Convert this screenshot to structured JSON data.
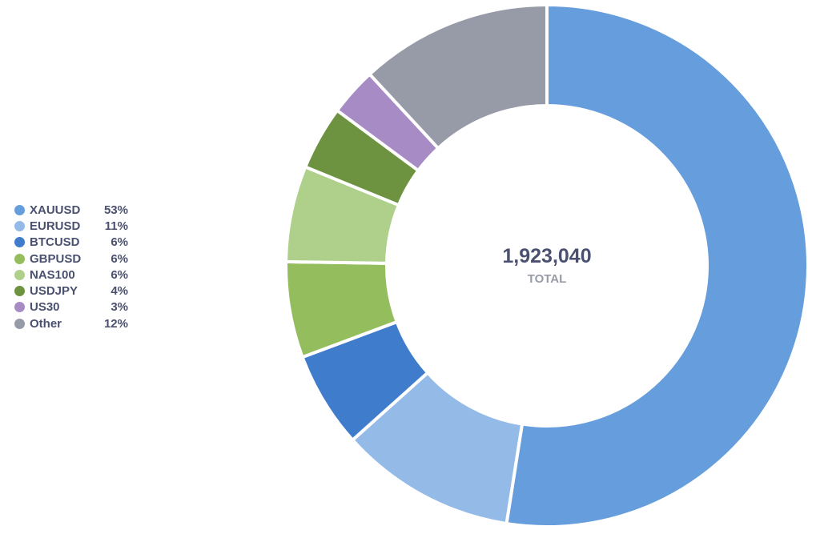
{
  "chart_data": {
    "type": "pie",
    "variant": "donut",
    "categories": [
      "XAUUSD",
      "EURUSD",
      "BTCUSD",
      "GBPUSD",
      "NAS100",
      "USDJPY",
      "US30",
      "Other"
    ],
    "values": [
      53,
      11,
      6,
      6,
      6,
      4,
      3,
      12
    ],
    "value_labels": [
      "53%",
      "11%",
      "6%",
      "6%",
      "6%",
      "4%",
      "3%",
      "12%"
    ],
    "colors": [
      "#669ddd",
      "#94bbe7",
      "#3f7dcc",
      "#94bd5e",
      "#afd08a",
      "#6d9341",
      "#a78bc4",
      "#979ba8"
    ],
    "center": {
      "value": "1,923,040",
      "label": "TOTAL"
    },
    "legend_position": "left"
  }
}
